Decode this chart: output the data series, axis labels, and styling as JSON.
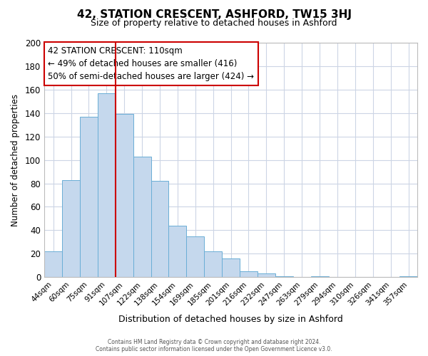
{
  "title": "42, STATION CRESCENT, ASHFORD, TW15 3HJ",
  "subtitle": "Size of property relative to detached houses in Ashford",
  "xlabel": "Distribution of detached houses by size in Ashford",
  "ylabel": "Number of detached properties",
  "bin_labels": [
    "44sqm",
    "60sqm",
    "75sqm",
    "91sqm",
    "107sqm",
    "122sqm",
    "138sqm",
    "154sqm",
    "169sqm",
    "185sqm",
    "201sqm",
    "216sqm",
    "232sqm",
    "247sqm",
    "263sqm",
    "279sqm",
    "294sqm",
    "310sqm",
    "326sqm",
    "341sqm",
    "357sqm"
  ],
  "bar_heights": [
    22,
    83,
    137,
    157,
    139,
    103,
    82,
    44,
    35,
    22,
    16,
    5,
    3,
    1,
    0,
    1,
    0,
    0,
    0,
    0,
    1
  ],
  "bar_color": "#c5d8ed",
  "bar_edge_color": "#6aaed6",
  "vline_x_index": 4,
  "vline_color": "#cc0000",
  "annotation_title": "42 STATION CRESCENT: 110sqm",
  "annotation_line1": "← 49% of detached houses are smaller (416)",
  "annotation_line2": "50% of semi-detached houses are larger (424) →",
  "annotation_box_color": "#ffffff",
  "annotation_box_edge": "#cc0000",
  "ylim": [
    0,
    200
  ],
  "yticks": [
    0,
    20,
    40,
    60,
    80,
    100,
    120,
    140,
    160,
    180,
    200
  ],
  "footer_line1": "Contains HM Land Registry data © Crown copyright and database right 2024.",
  "footer_line2": "Contains public sector information licensed under the Open Government Licence v3.0.",
  "background_color": "#ffffff",
  "grid_color": "#ccd5e5"
}
